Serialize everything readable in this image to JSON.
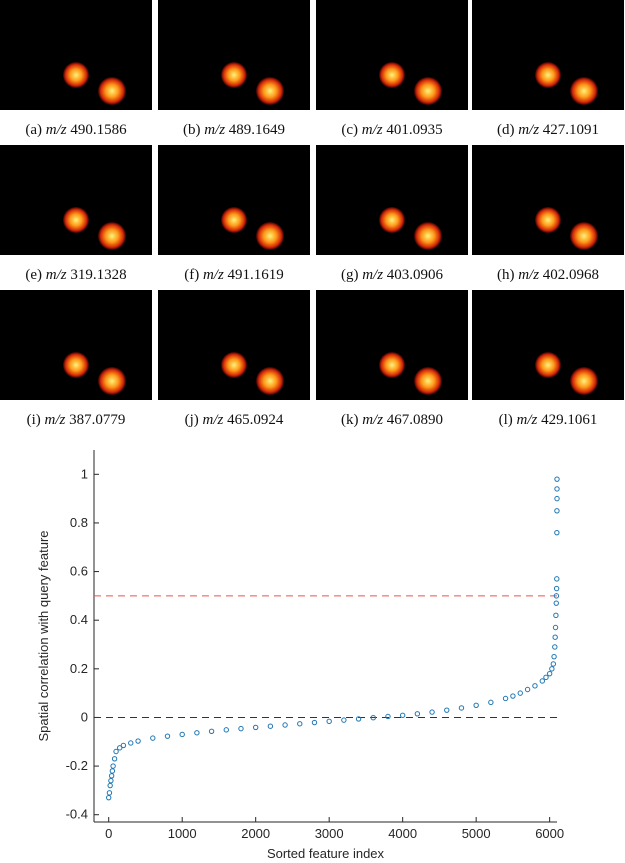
{
  "panels": [
    {
      "label": "(a)",
      "mz": "m/z",
      "value": "490.1586"
    },
    {
      "label": "(b)",
      "mz": "m/z",
      "value": "489.1649"
    },
    {
      "label": "(c)",
      "mz": "m/z",
      "value": "401.0935"
    },
    {
      "label": "(d)",
      "mz": "m/z",
      "value": "427.1091"
    },
    {
      "label": "(e)",
      "mz": "m/z",
      "value": "319.1328"
    },
    {
      "label": "(f)",
      "mz": "m/z",
      "value": "491.1619"
    },
    {
      "label": "(g)",
      "mz": "m/z",
      "value": "403.0906"
    },
    {
      "label": "(h)",
      "mz": "m/z",
      "value": "402.0968"
    },
    {
      "label": "(i)",
      "mz": "m/z",
      "value": "387.0779"
    },
    {
      "label": "(j)",
      "mz": "m/z",
      "value": "465.0924"
    },
    {
      "label": "(k)",
      "mz": "m/z",
      "value": "467.0890"
    },
    {
      "label": "(l)",
      "mz": "m/z",
      "value": "429.1061"
    }
  ],
  "chart_data": {
    "type": "scatter",
    "x_label": "Sorted feature index",
    "y_label": "Spatial correlation with query feature",
    "color": "#1f77b4",
    "x": [
      0,
      10,
      20,
      30,
      40,
      50,
      60,
      80,
      100,
      150,
      200,
      300,
      400,
      600,
      800,
      1000,
      1200,
      1400,
      1600,
      1800,
      2000,
      2200,
      2400,
      2600,
      2800,
      3000,
      3200,
      3400,
      3600,
      3800,
      4000,
      4200,
      4400,
      4600,
      4800,
      5000,
      5200,
      5400,
      5500,
      5600,
      5700,
      5800,
      5900,
      5950,
      6000,
      6030,
      6050,
      6060,
      6070,
      6075,
      6080,
      6085,
      6090,
      6092,
      6095,
      6097,
      6098,
      6099,
      6100,
      6100,
      6100
    ],
    "values": [
      -0.33,
      -0.31,
      -0.28,
      -0.26,
      -0.24,
      -0.22,
      -0.2,
      -0.17,
      -0.14,
      -0.125,
      -0.115,
      -0.105,
      -0.097,
      -0.085,
      -0.077,
      -0.07,
      -0.063,
      -0.057,
      -0.051,
      -0.046,
      -0.041,
      -0.036,
      -0.031,
      -0.026,
      -0.021,
      -0.016,
      -0.011,
      -0.006,
      -0.001,
      0.004,
      0.009,
      0.015,
      0.022,
      0.03,
      0.039,
      0.05,
      0.062,
      0.078,
      0.088,
      0.1,
      0.115,
      0.13,
      0.15,
      0.165,
      0.18,
      0.2,
      0.22,
      0.25,
      0.29,
      0.33,
      0.37,
      0.42,
      0.47,
      0.5,
      0.53,
      0.57,
      0.76,
      0.85,
      0.9,
      0.94,
      0.98
    ],
    "xlim": [
      -200,
      6100
    ],
    "ylim": [
      -0.43,
      1.1
    ],
    "xticks": [
      0,
      1000,
      2000,
      3000,
      4000,
      5000,
      6000
    ],
    "yticks": [
      -0.4,
      -0.2,
      0,
      0.2,
      0.4,
      0.6,
      0.8,
      1
    ],
    "hlines": [
      {
        "value": 0.5,
        "color": "#e8554e"
      },
      {
        "value": 0,
        "color": "#333333"
      }
    ]
  }
}
